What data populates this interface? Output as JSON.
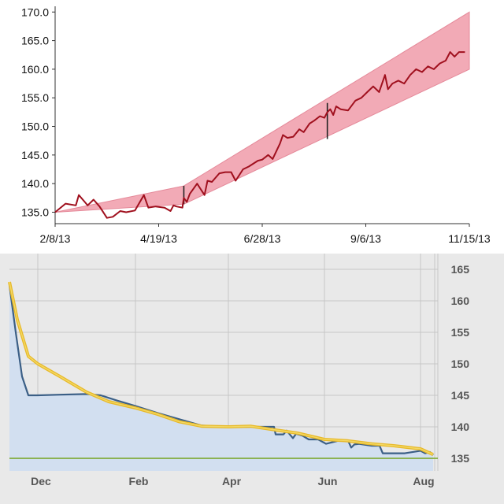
{
  "chart_data": [
    {
      "type": "line",
      "colors": {
        "line": "#a0101e",
        "band": "#f2aab6",
        "band_edge": "#e58a9a",
        "axis": "#333333",
        "marker": "#222222"
      },
      "x_ticks": [
        "2/8/13",
        "4/19/13",
        "6/28/13",
        "9/6/13",
        "11/15/13"
      ],
      "y_ticks": [
        "135.0",
        "140.0",
        "145.0",
        "150.0",
        "155.0",
        "160.0",
        "165.0",
        "170.0"
      ],
      "ylim": [
        133,
        171
      ],
      "xlim": [
        "2013-02-08",
        "2013-11-15"
      ],
      "grid": false,
      "band": {
        "upper": [
          [
            "2013-02-08",
            135.0
          ],
          [
            "2013-05-06",
            139.6
          ],
          [
            "2013-11-15",
            170.0
          ]
        ],
        "lower": [
          [
            "2013-11-15",
            160.0
          ],
          [
            "2013-05-06",
            136.4
          ],
          [
            "2013-02-08",
            135.0
          ]
        ]
      },
      "markers": [
        {
          "x": "2013-05-06",
          "y_from": 136.4,
          "y_to": 139.6
        },
        {
          "x": "2013-08-11",
          "y_from": 147.8,
          "y_to": 154.1
        }
      ],
      "series": [
        {
          "x": [
            "2013-02-08",
            "2013-02-15",
            "2013-02-22",
            "2013-02-24",
            "2013-02-28",
            "2013-03-02",
            "2013-03-06",
            "2013-03-10",
            "2013-03-15",
            "2013-03-19",
            "2013-03-24",
            "2013-03-28",
            "2013-04-03",
            "2013-04-09",
            "2013-04-12",
            "2013-04-17",
            "2013-04-23",
            "2013-04-27",
            "2013-04-29",
            "2013-05-01",
            "2013-05-05",
            "2013-05-06",
            "2013-05-08",
            "2013-05-10",
            "2013-05-15",
            "2013-05-20",
            "2013-05-22",
            "2013-05-25",
            "2013-05-30",
            "2013-06-03",
            "2013-06-07",
            "2013-06-10",
            "2013-06-15",
            "2013-06-19",
            "2013-06-25",
            "2013-06-28",
            "2013-07-02",
            "2013-07-05",
            "2013-07-10",
            "2013-07-12",
            "2013-07-15",
            "2013-07-19",
            "2013-07-23",
            "2013-07-26",
            "2013-07-30",
            "2013-08-02",
            "2013-08-06",
            "2013-08-09",
            "2013-08-11",
            "2013-08-13",
            "2013-08-15",
            "2013-08-17",
            "2013-08-20",
            "2013-08-25",
            "2013-08-30",
            "2013-09-03",
            "2013-09-07",
            "2013-09-11",
            "2013-09-15",
            "2013-09-19",
            "2013-09-21",
            "2013-09-24",
            "2013-09-28",
            "2013-10-02",
            "2013-10-06",
            "2013-10-10",
            "2013-10-14",
            "2013-10-18",
            "2013-10-22",
            "2013-10-26",
            "2013-10-30",
            "2013-11-02",
            "2013-11-05",
            "2013-11-08",
            "2013-11-12"
          ],
          "y": [
            135.0,
            136.5,
            136.2,
            138.0,
            136.8,
            136.2,
            137.2,
            136.0,
            134.0,
            134.2,
            135.2,
            135.0,
            135.3,
            138.0,
            135.8,
            136.0,
            135.8,
            135.2,
            136.2,
            136.0,
            135.8,
            137.5,
            136.8,
            138.2,
            140.0,
            138.0,
            140.5,
            140.3,
            141.8,
            142.0,
            142.0,
            140.5,
            142.5,
            143.0,
            144.0,
            144.2,
            145.0,
            144.3,
            147.0,
            148.5,
            148.0,
            148.2,
            149.5,
            149.0,
            150.5,
            151.0,
            151.8,
            151.5,
            152.5,
            153.0,
            152.0,
            153.5,
            153.0,
            152.8,
            154.5,
            155.0,
            156.0,
            157.0,
            156.0,
            159.0,
            156.5,
            157.5,
            158.0,
            157.5,
            159.0,
            160.0,
            159.5,
            160.5,
            160.0,
            161.0,
            161.5,
            163.0,
            162.2,
            163.0,
            163.0
          ]
        }
      ]
    },
    {
      "type": "area",
      "colors": {
        "actual": "#3b5f86",
        "fill": "#d2dff0",
        "trend": "#e8b92a",
        "trend_core": "#f3d964",
        "target": "#74a420",
        "grid": "#c6c6c6",
        "background": "#e9e9e9"
      },
      "x_ticks": [
        "Dec",
        "Feb",
        "Apr",
        "Jun",
        "Aug"
      ],
      "y_ticks": [
        "135",
        "140",
        "145",
        "150",
        "155",
        "160",
        "165"
      ],
      "ylim": [
        133,
        166.5
      ],
      "xlim": [
        "2012-11-13",
        "2013-08-12"
      ],
      "grid": true,
      "target": 135,
      "actual": {
        "x": [
          "2012-11-13",
          "2012-11-17",
          "2012-11-21",
          "2012-11-25",
          "2012-12-01",
          "2012-12-15",
          "2013-01-01",
          "2013-01-10",
          "2013-01-20",
          "2013-02-01",
          "2013-02-15",
          "2013-03-01",
          "2013-03-15",
          "2013-04-01",
          "2013-04-15",
          "2013-04-30",
          "2013-05-01",
          "2013-05-02",
          "2013-05-06",
          "2013-05-08",
          "2013-05-12",
          "2013-05-14",
          "2013-05-18",
          "2013-05-22",
          "2013-05-28",
          "2013-06-02",
          "2013-06-10",
          "2013-06-16",
          "2013-06-18",
          "2013-06-20",
          "2013-06-23",
          "2013-07-01",
          "2013-07-06",
          "2013-07-08",
          "2013-07-15",
          "2013-07-22",
          "2013-08-01",
          "2013-08-04",
          "2013-08-07",
          "2013-08-09"
        ],
        "y": [
          162.5,
          155.0,
          148.0,
          145.0,
          145.0,
          145.1,
          145.2,
          145.0,
          144.2,
          143.3,
          142.2,
          141.2,
          140.2,
          140.0,
          140.0,
          140.0,
          138.8,
          138.8,
          138.8,
          139.4,
          138.2,
          138.9,
          138.6,
          138.0,
          138.0,
          137.3,
          137.8,
          137.8,
          136.7,
          137.2,
          137.3,
          137.0,
          137.0,
          135.8,
          135.8,
          135.8,
          136.2,
          135.8,
          136.0,
          135.5
        ]
      },
      "trend": {
        "x": [
          "2012-11-13",
          "2012-11-18",
          "2012-11-25",
          "2012-12-01",
          "2012-12-15",
          "2013-01-01",
          "2013-01-15",
          "2013-02-01",
          "2013-02-15",
          "2013-03-01",
          "2013-03-15",
          "2013-04-01",
          "2013-04-15",
          "2013-05-01",
          "2013-05-15",
          "2013-06-01",
          "2013-06-15",
          "2013-07-01",
          "2013-07-15",
          "2013-08-01",
          "2013-08-09"
        ],
        "y": [
          163.0,
          157.0,
          151.2,
          150.0,
          148.0,
          145.5,
          144.0,
          143.0,
          142.0,
          140.8,
          140.1,
          140.0,
          140.1,
          139.5,
          139.0,
          138.0,
          137.8,
          137.3,
          137.0,
          136.5,
          135.6
        ]
      }
    }
  ]
}
